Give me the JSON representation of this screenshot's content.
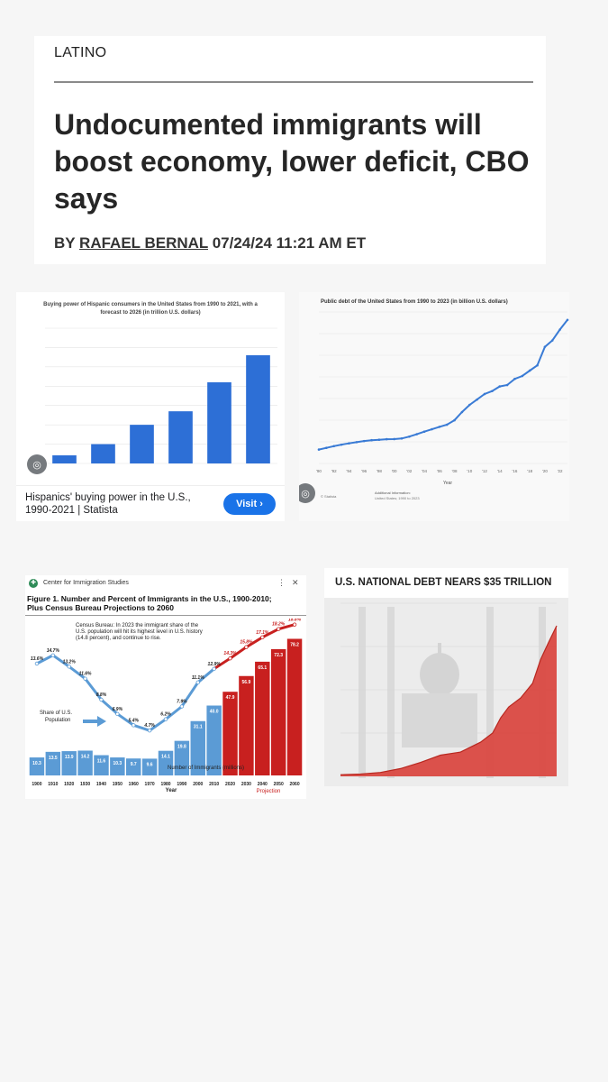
{
  "article": {
    "section": "LATINO",
    "headline": "Undocumented immigrants will boost economy, lower deficit, CBO says",
    "byline_prefix": "BY ",
    "author": "RAFAEL BERNAL",
    "timestamp": " 07/24/24 11:21 AM ET"
  },
  "hispanic_card": {
    "title": "Buying power of Hispanic consumers in the United States from 1990 to 2021, with a forecast to 2026 (in trillion U.S. dollars)",
    "caption": "Hispanics' buying power in the U.S., 1990-2021 | Statista",
    "visit_label": "Visit ›",
    "lens_icon": "google-lens-icon"
  },
  "public_debt_card": {
    "title": "Public debt of the United States from 1990 to 2023 (in billion U.S. dollars)",
    "xlabel": "Year",
    "footer_left": "© Statista",
    "footer_mid": "Additional Information:",
    "footer_mid2": "United States; 1990 to 2023"
  },
  "cis_card": {
    "source": "Center for Immigration Studies",
    "title_line1": "Figure 1. Number and Percent of Immigrants in the U.S., 1900-2010;",
    "title_line2": "Plus Census Bureau Projections to 2060",
    "note_line1": "Census Bureau: In 2023 the immigrant share of the",
    "note_line2": "U.S. population will hit its highest level in U.S. history",
    "note_line3": "(14.8 percent), and continue to rise.",
    "share_label_1": "Share of U.S.",
    "share_label_2": "Population",
    "number_label": "Number of Immigrants (millions)",
    "xlabel": "Year",
    "projection_label": "Projection",
    "colors": {
      "historic": "#5b9bd5",
      "projection": "#c8201f"
    }
  },
  "debt_card": {
    "title": "U.S. NATIONAL DEBT NEARS $35 TRILLION",
    "colors": {
      "area": "#d9403a"
    }
  },
  "chart_data": [
    {
      "id": "hispanic-buying-power",
      "type": "bar",
      "title": "Buying power of Hispanic consumers in the United States from 1990 to 2021, with a forecast to 2026 (in trillion U.S. dollars)",
      "categories": [
        "",
        "",
        "",
        "",
        "",
        ""
      ],
      "values": [
        0.21,
        0.5,
        1.0,
        1.35,
        2.1,
        2.8
      ],
      "ylim": [
        0,
        3.5
      ],
      "colors": [
        "#2d6fd6"
      ]
    },
    {
      "id": "us-public-debt",
      "type": "line",
      "title": "Public debt of the United States from 1990 to 2023 (in billion U.S. dollars)",
      "x": [
        1990,
        1991,
        1992,
        1993,
        1994,
        1995,
        1996,
        1997,
        1998,
        1999,
        2000,
        2001,
        2002,
        2003,
        2004,
        2005,
        2006,
        2007,
        2008,
        2009,
        2010,
        2011,
        2012,
        2013,
        2014,
        2015,
        2016,
        2017,
        2018,
        2019,
        2020,
        2021,
        2022,
        2023
      ],
      "values": [
        3206,
        3598,
        4002,
        4351,
        4643,
        4921,
        5181,
        5369,
        5478,
        5606,
        5628,
        5770,
        6198,
        6760,
        7354,
        7905,
        8451,
        8951,
        9986,
        11876,
        13529,
        14764,
        16051,
        16719,
        17794,
        18120,
        19539,
        20206,
        21462,
        22669,
        26945,
        28428,
        30929,
        33167
      ],
      "xticks": [
        "'90",
        "'92",
        "'94",
        "'96",
        "'98",
        "'00",
        "'02",
        "'04",
        "'06",
        "'08",
        "'10",
        "'12",
        "'14",
        "'16",
        "'18",
        "'20",
        "'22"
      ],
      "xlabel": "Year",
      "ylim": [
        0,
        35000
      ],
      "colors": [
        "#3a7bd5"
      ]
    },
    {
      "id": "immigrants-1900-2060",
      "type": "bar",
      "title": "Figure 1. Number and Percent of Immigrants in the U.S., 1900-2010; Plus Census Bureau Projections to 2060",
      "categories": [
        "1900",
        "1910",
        "1920",
        "1930",
        "1940",
        "1950",
        "1960",
        "1970",
        "1980",
        "1990",
        "2000",
        "2010",
        "2020",
        "2030",
        "2040",
        "2050",
        "2060"
      ],
      "series": [
        {
          "name": "Number of Immigrants (millions)",
          "values": [
            10.3,
            13.5,
            13.9,
            14.2,
            11.6,
            10.3,
            9.7,
            9.6,
            14.1,
            19.8,
            31.1,
            40.0,
            47.9,
            56.9,
            65.1,
            72.3,
            78.2
          ]
        },
        {
          "name": "Share of U.S. Population",
          "values": [
            13.6,
            14.7,
            13.2,
            11.6,
            8.8,
            6.9,
            5.4,
            4.7,
            6.2,
            7.9,
            11.1,
            12.9,
            14.3,
            15.8,
            17.1,
            18.2,
            18.8
          ]
        }
      ],
      "value_labels": [
        "10.3",
        "13.5",
        "13.9",
        "14.2",
        "11.6",
        "10.3",
        "9.7",
        "9.6",
        "14.1",
        "19.8",
        "31.1",
        "40.0",
        "47.9",
        "56.9",
        "65.1",
        "72.3",
        "78.2"
      ],
      "pct_labels": [
        "13.6%",
        "14.7%",
        "13.2%",
        "11.6%",
        "8.8%",
        "6.9%",
        "5.4%",
        "4.7%",
        "6.2%",
        "7.9%",
        "11.1%",
        "12.9%",
        "14.3%",
        "15.8%",
        "17.1%",
        "18.2%",
        "18.8%"
      ],
      "projection_start": "2020",
      "xlabel": "Year"
    },
    {
      "id": "us-national-debt",
      "type": "area",
      "title": "U.S. NATIONAL DEBT NEARS $35 TRILLION",
      "x": [
        1970,
        1975,
        1980,
        1985,
        1990,
        1995,
        2000,
        2005,
        2008,
        2010,
        2012,
        2015,
        2018,
        2020,
        2022,
        2024
      ],
      "values": [
        0.37,
        0.53,
        0.9,
        1.8,
        3.2,
        4.9,
        5.6,
        7.9,
        10.0,
        13.5,
        16.0,
        18.1,
        21.5,
        27.0,
        31.0,
        34.8
      ],
      "ylim": [
        0,
        40
      ],
      "colors": [
        "#d9403a"
      ]
    }
  ]
}
